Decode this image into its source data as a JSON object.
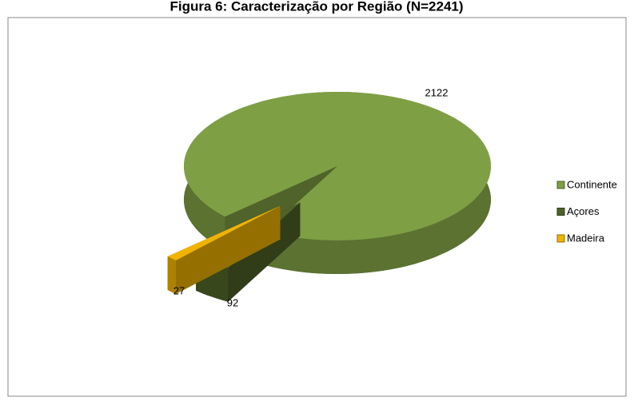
{
  "chart_data": {
    "type": "pie",
    "title": "Figura 6: Caracterização por Região (N=2241)",
    "categories": [
      "Continente",
      "Açores",
      "Madeira"
    ],
    "values": [
      2122,
      92,
      27
    ],
    "colors": [
      "#7f9f44",
      "#4f6228",
      "#f0b400"
    ],
    "legend": "right"
  }
}
